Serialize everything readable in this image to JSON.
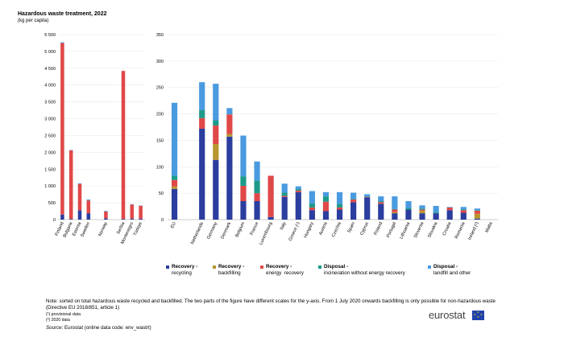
{
  "header": {
    "title": "Hazardous waste treatment, 2022",
    "subtitle": "(kg per capita)"
  },
  "colors": {
    "recycling": "#2b3d9e",
    "backfilling": "#b8962e",
    "energy_recovery": "#e04848",
    "incineration": "#1e9a8a",
    "landfill": "#4a9ae0",
    "grid": "#e6e6e6",
    "axis": "#999999"
  },
  "legend": [
    {
      "key": "recycling",
      "line1": "Recovery -",
      "line2": "recycling",
      "color": "#2b3d9e"
    },
    {
      "key": "backfilling",
      "line1": "Recovery -",
      "line2": "backfilling",
      "color": "#b8962e"
    },
    {
      "key": "energy_recovery",
      "line1": "Recovery -",
      "line2": "energy  recovery",
      "color": "#e04848"
    },
    {
      "key": "incineration",
      "line1": "Disposal -",
      "line2": "incineration without energy recovery",
      "color": "#1e9a8a"
    },
    {
      "key": "landfill",
      "line1": "Disposal -",
      "line2": "landfill and other",
      "color": "#4a9ae0"
    }
  ],
  "chart_data": [
    {
      "type": "bar",
      "stacked": true,
      "ylim": [
        0,
        5500
      ],
      "yticks": [
        0,
        500,
        1000,
        1500,
        2000,
        2500,
        3000,
        3500,
        4000,
        4500,
        5000,
        5500
      ],
      "ytick_labels": [
        "0",
        "500",
        "1 000",
        "1 500",
        "2 000",
        "2 500",
        "3 000",
        "3 500",
        "4 000",
        "4 500",
        "5 000",
        "5 500"
      ],
      "categories": [
        "Finland",
        "Bulgaria",
        "Estonia",
        "Sweden",
        "",
        "Norway",
        "",
        "Serbia",
        "Montenegro",
        "Türkiye"
      ],
      "series": [
        {
          "name": "Recovery - recycling",
          "values": [
            150,
            20,
            280,
            190,
            0,
            40,
            0,
            20,
            30,
            30
          ]
        },
        {
          "name": "Recovery - backfilling",
          "values": [
            0,
            0,
            0,
            0,
            0,
            0,
            0,
            0,
            0,
            0
          ]
        },
        {
          "name": "Recovery - energy  recovery",
          "values": [
            5100,
            2040,
            780,
            380,
            0,
            200,
            0,
            4400,
            420,
            380
          ]
        },
        {
          "name": "Disposal - incineration without energy recovery",
          "values": [
            0,
            0,
            0,
            10,
            0,
            5,
            0,
            0,
            0,
            0
          ]
        },
        {
          "name": "Disposal - landfill and other",
          "values": [
            20,
            10,
            20,
            20,
            0,
            15,
            0,
            0,
            10,
            10
          ]
        }
      ]
    },
    {
      "type": "bar",
      "stacked": true,
      "ylim": [
        0,
        350
      ],
      "yticks": [
        0,
        50,
        100,
        150,
        200,
        250,
        300,
        350
      ],
      "ytick_labels": [
        "0",
        "50",
        "100",
        "150",
        "200",
        "250",
        "300",
        "350"
      ],
      "categories": [
        "EU",
        "",
        "Netherlands",
        "Germany",
        "Denmark",
        "Belgium",
        "France",
        "Luxembourg",
        "Italy",
        "Greece (¹)",
        "Hungary",
        "Austria",
        "Czechia",
        "Spain",
        "Cyprus",
        "Poland",
        "Portugal",
        "Lithuania",
        "Slovenia",
        "Slovakia",
        "Croatia",
        "Romania",
        "Ireland (²)",
        "Malta"
      ],
      "series": [
        {
          "name": "Recovery - recycling",
          "values": [
            58,
            0,
            172,
            113,
            157,
            35,
            35,
            5,
            43,
            52,
            18,
            16,
            19,
            33,
            42,
            30,
            12,
            19,
            12,
            12,
            18,
            13,
            2,
            0
          ]
        },
        {
          "name": "Recovery - backfilling",
          "values": [
            5,
            0,
            0,
            30,
            5,
            0,
            0,
            0,
            0,
            0,
            0,
            0,
            0,
            0,
            0,
            0,
            2,
            0,
            5,
            0,
            0,
            0,
            9,
            0
          ]
        },
        {
          "name": "Recovery - energy  recovery",
          "values": [
            12,
            0,
            20,
            35,
            37,
            29,
            15,
            78,
            2,
            3,
            5,
            18,
            4,
            5,
            1,
            3,
            5,
            0,
            2,
            0,
            5,
            5,
            6,
            0
          ]
        },
        {
          "name": "Disposal - incineration without energy recovery",
          "values": [
            8,
            0,
            15,
            10,
            0,
            18,
            24,
            0,
            6,
            3,
            8,
            10,
            7,
            1,
            1,
            2,
            1,
            3,
            2,
            2,
            0,
            1,
            1,
            0
          ]
        },
        {
          "name": "Disposal - landfill and other",
          "values": [
            138,
            0,
            53,
            69,
            12,
            77,
            36,
            0,
            17,
            5,
            23,
            8,
            22,
            12,
            4,
            9,
            24,
            13,
            6,
            12,
            1,
            5,
            3,
            0
          ]
        }
      ]
    }
  ],
  "notes": {
    "main": "Note: sorted on total hazardous waste recycled and backfilled. The two parts of the figure have different scales for the y-axis. From 1 July 2020 onwards backfilling is only possible for non-hazardous waste (Directive EU 2018/851, article 1)",
    "footnote1": "(¹) provisional data",
    "footnote2": "(²) 2020 data",
    "source_label": "Source:",
    "source_text": " Eurostat (online data code: env_wastrt)"
  },
  "logo": {
    "text": "eurostat"
  }
}
